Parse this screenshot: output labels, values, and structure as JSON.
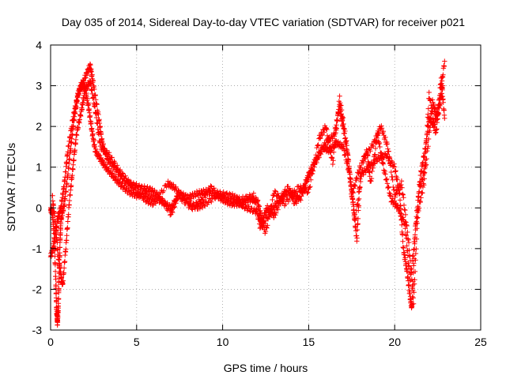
{
  "chart_data": {
    "type": "scatter",
    "title": "Day 035 of 2014, Sidereal Day-to-day VTEC variation (SDTVAR) for receiver p021",
    "xlabel": "GPS time / hours",
    "ylabel": "SDTVAR / TECUs",
    "xlim": [
      0,
      25
    ],
    "ylim": [
      -3,
      4
    ],
    "xticks": [
      0,
      5,
      10,
      15,
      20,
      25
    ],
    "yticks": [
      -3,
      -2,
      -1,
      0,
      1,
      2,
      3,
      4
    ],
    "grid": true,
    "marker": "+",
    "color": "#ff0000",
    "series": [
      {
        "name": "SDTVAR",
        "tracks": [
          [
            [
              0.0,
              -0.05
            ],
            [
              0.1,
              -0.1
            ],
            [
              0.2,
              -0.6
            ],
            [
              0.3,
              -1.8
            ],
            [
              0.35,
              -2.5
            ],
            [
              0.4,
              -2.85
            ],
            [
              0.45,
              -2.4
            ],
            [
              0.5,
              -1.6
            ],
            [
              0.55,
              -0.8
            ],
            [
              0.6,
              -0.3
            ],
            [
              0.8,
              0.1
            ],
            [
              1.0,
              0.8
            ],
            [
              1.2,
              1.6
            ],
            [
              1.4,
              2.3
            ],
            [
              1.6,
              2.8
            ],
            [
              1.8,
              3.05
            ],
            [
              2.0,
              2.95
            ],
            [
              2.2,
              2.5
            ],
            [
              2.4,
              1.9
            ],
            [
              2.6,
              1.4
            ],
            [
              2.9,
              1.2
            ],
            [
              3.2,
              1.0
            ],
            [
              3.6,
              0.8
            ],
            [
              4.0,
              0.6
            ],
            [
              4.5,
              0.4
            ],
            [
              5.0,
              0.3
            ],
            [
              5.5,
              0.35
            ],
            [
              6.0,
              0.25
            ],
            [
              6.5,
              0.15
            ],
            [
              7.0,
              0.0
            ],
            [
              7.5,
              0.35
            ],
            [
              8.0,
              0.25
            ],
            [
              8.5,
              0.35
            ],
            [
              9.0,
              0.4
            ],
            [
              9.5,
              0.35
            ],
            [
              10.0,
              0.2
            ],
            [
              10.5,
              0.1
            ],
            [
              11.0,
              0.1
            ],
            [
              11.5,
              0.2
            ],
            [
              12.0,
              0.2
            ],
            [
              12.3,
              -0.3
            ],
            [
              12.6,
              0.0
            ],
            [
              13.0,
              -0.2
            ],
            [
              13.5,
              0.3
            ],
            [
              14.0,
              0.4
            ],
            [
              14.5,
              0.2
            ],
            [
              15.0,
              0.8
            ],
            [
              15.5,
              1.2
            ],
            [
              16.0,
              1.6
            ],
            [
              16.5,
              1.8
            ],
            [
              16.8,
              2.5
            ],
            [
              17.0,
              2.0
            ],
            [
              17.3,
              1.2
            ],
            [
              17.6,
              0.0
            ],
            [
              17.8,
              -0.8
            ],
            [
              18.0,
              0.8
            ],
            [
              18.5,
              1.0
            ],
            [
              19.0,
              1.2
            ],
            [
              19.5,
              1.3
            ],
            [
              20.0,
              1.0
            ],
            [
              20.3,
              0.3
            ],
            [
              20.5,
              -1.0
            ],
            [
              20.7,
              -1.5
            ],
            [
              20.9,
              -2.2
            ],
            [
              21.0,
              -2.45
            ],
            [
              21.2,
              -0.5
            ],
            [
              21.5,
              0.8
            ],
            [
              21.8,
              1.5
            ],
            [
              22.0,
              2.2
            ],
            [
              22.3,
              2.0
            ],
            [
              22.6,
              2.6
            ],
            [
              22.9,
              3.6
            ]
          ],
          [
            [
              0.0,
              -1.2
            ],
            [
              0.2,
              -0.9
            ],
            [
              0.4,
              -0.3
            ],
            [
              0.6,
              0.0
            ],
            [
              0.8,
              0.6
            ],
            [
              1.0,
              1.4
            ],
            [
              1.3,
              2.2
            ],
            [
              1.6,
              2.8
            ],
            [
              2.0,
              3.2
            ],
            [
              2.3,
              3.5
            ],
            [
              2.5,
              3.0
            ],
            [
              2.8,
              2.2
            ],
            [
              3.0,
              1.6
            ],
            [
              3.3,
              1.2
            ],
            [
              3.7,
              1.0
            ],
            [
              4.2,
              0.7
            ],
            [
              4.8,
              0.5
            ],
            [
              5.5,
              0.2
            ],
            [
              6.0,
              0.1
            ],
            [
              6.8,
              0.6
            ],
            [
              7.2,
              0.5
            ],
            [
              7.8,
              0.2
            ],
            [
              8.5,
              0.0
            ],
            [
              9.0,
              0.1
            ],
            [
              9.8,
              0.35
            ],
            [
              10.5,
              0.3
            ],
            [
              11.0,
              0.2
            ],
            [
              11.8,
              0.3
            ],
            [
              12.2,
              -0.5
            ],
            [
              12.8,
              -0.1
            ],
            [
              13.2,
              0.15
            ],
            [
              13.8,
              0.5
            ],
            [
              14.2,
              0.1
            ],
            [
              14.8,
              0.6
            ],
            [
              15.2,
              1.0
            ],
            [
              15.8,
              1.5
            ],
            [
              16.2,
              1.4
            ],
            [
              16.6,
              1.6
            ],
            [
              17.0,
              1.5
            ],
            [
              17.4,
              0.8
            ],
            [
              17.7,
              -0.3
            ],
            [
              18.2,
              1.2
            ],
            [
              18.8,
              1.6
            ],
            [
              19.2,
              2.0
            ],
            [
              19.6,
              1.5
            ],
            [
              20.0,
              0.3
            ],
            [
              20.4,
              0.6
            ],
            [
              20.8,
              -0.8
            ],
            [
              21.1,
              -2.3
            ],
            [
              21.4,
              0.4
            ],
            [
              21.8,
              1.0
            ],
            [
              22.2,
              2.6
            ],
            [
              22.5,
              2.2
            ],
            [
              22.8,
              3.0
            ]
          ],
          [
            [
              0.1,
              0.3
            ],
            [
              0.3,
              -0.5
            ],
            [
              0.5,
              -1.4
            ],
            [
              0.7,
              -1.9
            ],
            [
              0.9,
              -0.9
            ],
            [
              1.1,
              0.2
            ],
            [
              1.3,
              1.0
            ],
            [
              1.5,
              1.8
            ],
            [
              1.8,
              2.4
            ],
            [
              2.0,
              2.9
            ],
            [
              2.3,
              3.1
            ],
            [
              2.6,
              2.4
            ],
            [
              2.9,
              1.5
            ],
            [
              3.4,
              1.3
            ],
            [
              4.0,
              0.9
            ],
            [
              4.6,
              0.6
            ],
            [
              5.2,
              0.5
            ],
            [
              5.8,
              0.45
            ],
            [
              6.3,
              0.3
            ],
            [
              7.0,
              -0.15
            ],
            [
              7.4,
              0.3
            ],
            [
              8.2,
              0.0
            ],
            [
              8.8,
              0.2
            ],
            [
              9.3,
              0.5
            ],
            [
              10.0,
              0.25
            ],
            [
              10.8,
              0.15
            ],
            [
              11.4,
              0.0
            ],
            [
              12.0,
              -0.1
            ],
            [
              12.5,
              -0.6
            ],
            [
              13.0,
              0.4
            ],
            [
              13.6,
              0.1
            ],
            [
              14.4,
              0.5
            ],
            [
              15.0,
              0.4
            ],
            [
              15.6,
              1.7
            ],
            [
              16.0,
              2.0
            ],
            [
              16.4,
              1.1
            ],
            [
              16.8,
              2.7
            ],
            [
              17.2,
              1.6
            ],
            [
              17.5,
              0.3
            ],
            [
              17.9,
              0.9
            ],
            [
              18.4,
              1.4
            ],
            [
              18.6,
              0.6
            ],
            [
              19.0,
              1.8
            ],
            [
              19.4,
              0.9
            ],
            [
              19.8,
              0.2
            ],
            [
              20.2,
              0.0
            ],
            [
              20.6,
              -0.4
            ],
            [
              20.9,
              -1.8
            ],
            [
              21.3,
              -0.2
            ],
            [
              21.7,
              0.6
            ],
            [
              22.0,
              2.8
            ],
            [
              22.4,
              1.8
            ],
            [
              22.7,
              3.2
            ],
            [
              22.9,
              2.2
            ]
          ]
        ]
      }
    ]
  }
}
